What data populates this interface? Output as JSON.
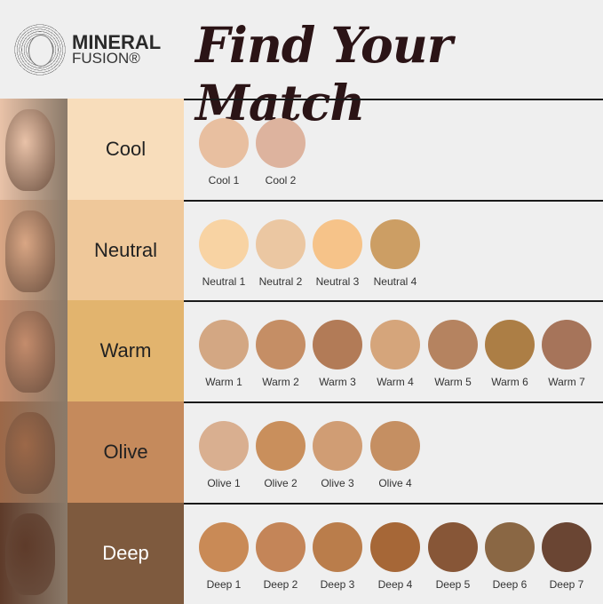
{
  "brand": {
    "line1": "MINERAL",
    "line2": "FUSION®"
  },
  "title": "Find Your Match",
  "rows": [
    {
      "tone": "Cool",
      "tone_color": "#F8DDBB",
      "skin": "#E9C2A8",
      "text_color": "#222222",
      "shades": [
        {
          "name": "Cool 1",
          "color": "#E8BFA0"
        },
        {
          "name": "Cool 2",
          "color": "#DDB39E"
        }
      ]
    },
    {
      "tone": "Neutral",
      "tone_color": "#EFC89A",
      "skin": "#D9A684",
      "text_color": "#222222",
      "shades": [
        {
          "name": "Neutral 1",
          "color": "#F8D3A3"
        },
        {
          "name": "Neutral 2",
          "color": "#EBC7A2"
        },
        {
          "name": "Neutral 3",
          "color": "#F6C389"
        },
        {
          "name": "Neutral 4",
          "color": "#CC9E64"
        }
      ]
    },
    {
      "tone": "Warm",
      "tone_color": "#E2B46E",
      "skin": "#C48C6C",
      "text_color": "#222222",
      "shades": [
        {
          "name": "Warm 1",
          "color": "#D3A783"
        },
        {
          "name": "Warm 2",
          "color": "#C58E65"
        },
        {
          "name": "Warm 3",
          "color": "#B27B57"
        },
        {
          "name": "Warm 4",
          "color": "#D5A57B"
        },
        {
          "name": "Warm 5",
          "color": "#B58360"
        },
        {
          "name": "Warm 6",
          "color": "#AC7E45"
        },
        {
          "name": "Warm 7",
          "color": "#A6745A"
        }
      ]
    },
    {
      "tone": "Olive",
      "tone_color": "#C58A5C",
      "skin": "#9C6848",
      "text_color": "#222222",
      "shades": [
        {
          "name": "Olive 1",
          "color": "#D9AF90"
        },
        {
          "name": "Olive 2",
          "color": "#C98F5C"
        },
        {
          "name": "Olive 3",
          "color": "#D09D74"
        },
        {
          "name": "Olive 4",
          "color": "#C58F62"
        }
      ]
    },
    {
      "tone": "Deep",
      "tone_color": "#7E5A3E",
      "skin": "#5E3B2A",
      "text_color": "#FFFFFF",
      "shades": [
        {
          "name": "Deep 1",
          "color": "#C98A56"
        },
        {
          "name": "Deep 2",
          "color": "#C48558"
        },
        {
          "name": "Deep 3",
          "color": "#BA7D4B"
        },
        {
          "name": "Deep 4",
          "color": "#A66737"
        },
        {
          "name": "Deep 5",
          "color": "#875637"
        },
        {
          "name": "Deep 6",
          "color": "#8A6744"
        },
        {
          "name": "Deep 7",
          "color": "#6A4533"
        }
      ]
    }
  ]
}
